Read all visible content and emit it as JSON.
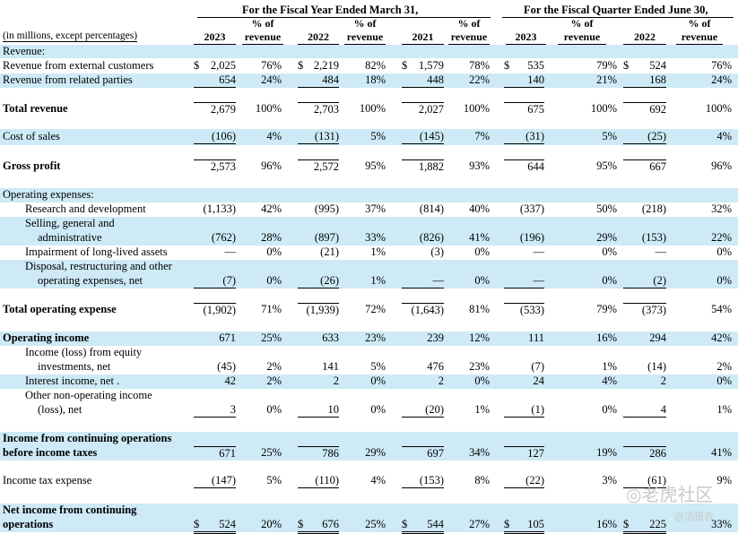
{
  "header": {
    "fiscal_year_group": "For the Fiscal Year Ended March 31,",
    "fiscal_quarter_group": "For the Fiscal Quarter Ended June 30,",
    "unit_note": "(in millions, except percentages)",
    "pct_top": "% of",
    "pct_bottom": "revenue",
    "years": [
      "2023",
      "2022",
      "2021",
      "2023",
      "2022"
    ]
  },
  "rows": [
    {
      "label": "Revenue:",
      "style": "plain",
      "values": []
    },
    {
      "label": "Revenue from external customers",
      "style": "plain",
      "values": [
        "$ 2,025",
        "76%",
        "$ 2,219",
        "82%",
        "$ 1,579",
        "78%",
        "535",
        "79%",
        "524",
        "76%"
      ]
    },
    {
      "label": "Revenue from related parties",
      "style": "plain",
      "values": [
        "654",
        "24%",
        "484",
        "18%",
        "448",
        "22%",
        "140",
        "21%",
        "168",
        "24%"
      ]
    },
    {
      "label": "Total revenue",
      "style": "bold",
      "values": [
        "2,679",
        "100%",
        "2,703",
        "100%",
        "2,027",
        "100%",
        "675",
        "100%",
        "692",
        "100%"
      ]
    },
    {
      "label": "Cost of sales",
      "style": "plain",
      "values": [
        "(106)",
        "4%",
        "(131)",
        "5%",
        "(145)",
        "7%",
        "(31)",
        "5%",
        "(25)",
        "4%"
      ]
    },
    {
      "label": "Gross profit",
      "style": "bold",
      "values": [
        "2,573",
        "96%",
        "2,572",
        "95%",
        "1,882",
        "93%",
        "644",
        "95%",
        "667",
        "96%"
      ]
    },
    {
      "label": "Operating expenses:",
      "style": "plain",
      "values": []
    },
    {
      "label": "Research and development",
      "style": "indent",
      "values": [
        "(1,133)",
        "42%",
        "(995)",
        "37%",
        "(814)",
        "40%",
        "(337)",
        "50%",
        "(218)",
        "32%"
      ]
    },
    {
      "label": "Selling, general and",
      "label2": "administrative",
      "style": "indent",
      "values": [
        "(762)",
        "28%",
        "(897)",
        "33%",
        "(826)",
        "41%",
        "(196)",
        "29%",
        "(153)",
        "22%"
      ]
    },
    {
      "label": "Impairment of long-lived assets",
      "style": "indent",
      "values": [
        "—",
        "0%",
        "(21)",
        "1%",
        "(3)",
        "0%",
        "—",
        "0%",
        "—",
        "0%"
      ]
    },
    {
      "label": "Disposal, restructuring and other",
      "label2": "operating expenses, net",
      "style": "indent",
      "values": [
        "(7)",
        "0%",
        "(26)",
        "1%",
        "—",
        "0%",
        "—",
        "0%",
        "(2)",
        "0%"
      ]
    },
    {
      "label": "Total operating expense",
      "style": "bold",
      "values": [
        "(1,902)",
        "71%",
        "(1,939)",
        "72%",
        "(1,643)",
        "81%",
        "(533)",
        "79%",
        "(373)",
        "54%"
      ]
    },
    {
      "label": "Operating income",
      "style": "bold",
      "values": [
        "671",
        "25%",
        "633",
        "23%",
        "239",
        "12%",
        "111",
        "16%",
        "294",
        "42%"
      ]
    },
    {
      "label": "Income (loss) from equity",
      "label2": "investments, net",
      "style": "indent",
      "values": [
        "(45)",
        "2%",
        "141",
        "5%",
        "476",
        "23%",
        "(7)",
        "1%",
        "(14)",
        "2%"
      ]
    },
    {
      "label": "Interest income, net .",
      "style": "indent",
      "values": [
        "42",
        "2%",
        "2",
        "0%",
        "2",
        "0%",
        "24",
        "4%",
        "2",
        "0%"
      ]
    },
    {
      "label": "Other non-operating income",
      "label2": "(loss), net",
      "style": "indent",
      "values": [
        "3",
        "0%",
        "10",
        "0%",
        "(20)",
        "1%",
        "(1)",
        "0%",
        "4",
        "1%"
      ]
    },
    {
      "label": "Income from continuing operations",
      "label2": "before income taxes",
      "style": "bold",
      "values": [
        "671",
        "25%",
        "786",
        "29%",
        "697",
        "34%",
        "127",
        "19%",
        "286",
        "41%"
      ]
    },
    {
      "label": "Income tax expense",
      "style": "plain",
      "values": [
        "(147)",
        "5%",
        "(110)",
        "4%",
        "(153)",
        "8%",
        "(22)",
        "3%",
        "(61)",
        "9%"
      ]
    },
    {
      "label": "Net income from continuing",
      "label2": "operations",
      "style": "bold",
      "values": [
        "$ 524",
        "20%",
        "$ 676",
        "25%",
        "$ 544",
        "27%",
        "105",
        "16%",
        "225",
        "33%"
      ]
    }
  ],
  "quarter_dollar_sign": "$",
  "watermark": {
    "text": "老虎社区",
    "sub": "@活报告"
  }
}
